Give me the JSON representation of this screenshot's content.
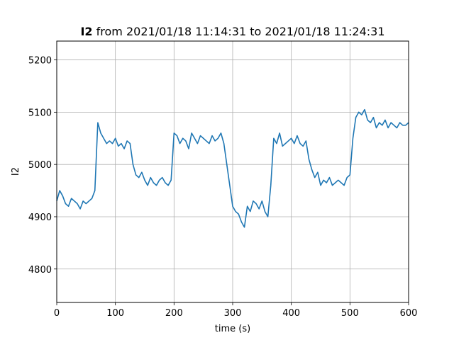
{
  "chart_data": {
    "type": "line",
    "title_bold": "I2",
    "title_rest": " from 2021/01/18 11:14:31 to 2021/01/18 11:24:31",
    "xlabel": "time (s)",
    "ylabel": "I2",
    "xlim": [
      0,
      600
    ],
    "ylim": [
      4736,
      5236
    ],
    "x_ticks": [
      0,
      100,
      200,
      300,
      400,
      500,
      600
    ],
    "y_ticks": [
      4800,
      4900,
      5000,
      5100,
      5200
    ],
    "grid": true,
    "line_color": "#1f77b4",
    "series": [
      {
        "x": [
          0,
          5,
          10,
          15,
          20,
          25,
          30,
          35,
          40,
          45,
          50,
          55,
          60,
          65,
          70,
          75,
          80,
          85,
          90,
          95,
          100,
          105,
          110,
          115,
          120,
          125,
          130,
          135,
          140,
          145,
          150,
          155,
          160,
          165,
          170,
          175,
          180,
          185,
          190,
          195,
          200,
          205,
          210,
          215,
          220,
          225,
          230,
          235,
          240,
          245,
          250,
          255,
          260,
          265,
          270,
          275,
          280,
          285,
          290,
          295,
          300,
          305,
          310,
          315,
          320,
          325,
          330,
          335,
          340,
          345,
          350,
          355,
          360,
          365,
          370,
          375,
          380,
          385,
          390,
          395,
          400,
          405,
          410,
          415,
          420,
          425,
          430,
          435,
          440,
          445,
          450,
          455,
          460,
          465,
          470,
          475,
          480,
          485,
          490,
          495,
          500,
          505,
          510,
          515,
          520,
          525,
          530,
          535,
          540,
          545,
          550,
          555,
          560,
          565,
          570,
          575,
          580,
          585,
          590,
          595,
          600
        ],
        "y": [
          4930,
          4950,
          4940,
          4925,
          4920,
          4935,
          4930,
          4925,
          4915,
          4930,
          4925,
          4930,
          4935,
          4950,
          5080,
          5060,
          5050,
          5040,
          5045,
          5040,
          5050,
          5035,
          5040,
          5030,
          5045,
          5040,
          5000,
          4980,
          4975,
          4985,
          4970,
          4960,
          4975,
          4965,
          4960,
          4970,
          4975,
          4965,
          4960,
          4970,
          5060,
          5055,
          5040,
          5050,
          5045,
          5030,
          5060,
          5050,
          5040,
          5055,
          5050,
          5045,
          5040,
          5055,
          5045,
          5050,
          5060,
          5040,
          5000,
          4960,
          4920,
          4910,
          4905,
          4890,
          4880,
          4920,
          4910,
          4930,
          4925,
          4915,
          4930,
          4910,
          4900,
          4960,
          5050,
          5040,
          5060,
          5035,
          5040,
          5045,
          5050,
          5040,
          5055,
          5040,
          5035,
          5045,
          5010,
          4990,
          4975,
          4985,
          4960,
          4970,
          4965,
          4975,
          4960,
          4965,
          4970,
          4965,
          4960,
          4975,
          4980,
          5050,
          5090,
          5100,
          5095,
          5105,
          5085,
          5080,
          5090,
          5070,
          5080,
          5075,
          5085,
          5070,
          5080,
          5075,
          5070,
          5080,
          5075,
          5075,
          5080
        ]
      }
    ]
  }
}
